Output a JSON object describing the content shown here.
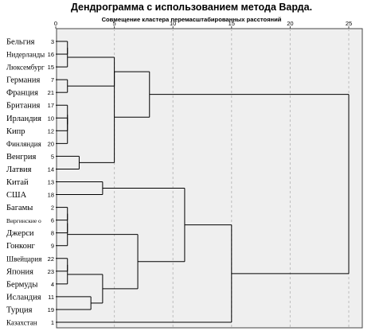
{
  "chart_data": {
    "type": "dendrogram",
    "title": "Дендрограмма с использованием метода Варда.",
    "subtitle": "Совмещение кластера перемасштабированных расстояний",
    "xlim": [
      0,
      25
    ],
    "xticks": [
      0,
      5,
      10,
      15,
      20,
      25
    ],
    "grid": true,
    "leaves": [
      {
        "label": "Бельгия",
        "id": 3
      },
      {
        "label": "Нидерланды",
        "id": 16
      },
      {
        "label": "Люксембург",
        "id": 15
      },
      {
        "label": "Германия",
        "id": 7
      },
      {
        "label": "Франция",
        "id": 21
      },
      {
        "label": "Британия",
        "id": 17
      },
      {
        "label": "Ирландия",
        "id": 10
      },
      {
        "label": "Кипр",
        "id": 12
      },
      {
        "label": "Финляндия",
        "id": 20
      },
      {
        "label": "Венгрия",
        "id": 5
      },
      {
        "label": "Латвия",
        "id": 14
      },
      {
        "label": "Китай",
        "id": 13
      },
      {
        "label": "США",
        "id": 18
      },
      {
        "label": "Багамы",
        "id": 2
      },
      {
        "label": "Виргинские о",
        "id": 6
      },
      {
        "label": "Джерси",
        "id": 8
      },
      {
        "label": "Гонконг",
        "id": 9
      },
      {
        "label": "Швейцария",
        "id": 22
      },
      {
        "label": "Япония",
        "id": 23
      },
      {
        "label": "Бермуды",
        "id": 4
      },
      {
        "label": "Исландия",
        "id": 11
      },
      {
        "label": "Турция",
        "id": 19
      },
      {
        "label": "Казахстан",
        "id": 1
      }
    ],
    "merges": [
      {
        "a": 3,
        "b": 16,
        "height": 1
      },
      {
        "a": 10,
        "b": 12,
        "height": 1
      },
      {
        "a": 2,
        "b": 6,
        "height": 1
      },
      {
        "a": 22,
        "b": 23,
        "height": 1
      },
      {
        "a": 7,
        "b": 21,
        "height": 1
      },
      {
        "a": 17,
        "b": 10,
        "height": 1
      },
      {
        "a": 15,
        "b": 3,
        "height": 1
      },
      {
        "a": 8,
        "b": 2,
        "height": 1
      },
      {
        "a": 4,
        "b": 22,
        "height": 1
      },
      {
        "a": 20,
        "b": 17,
        "height": 1
      },
      {
        "a": 9,
        "b": 8,
        "height": 1
      },
      {
        "a": 5,
        "b": 14,
        "height": 2
      },
      {
        "a": 11,
        "b": 19,
        "height": 3
      },
      {
        "a": 4,
        "b": 11,
        "height": 4
      },
      {
        "a": 13,
        "b": 18,
        "height": 4
      },
      {
        "a": 15,
        "b": 7,
        "height": 5
      },
      {
        "a": 5,
        "b": 15,
        "height": 5
      },
      {
        "a": 4,
        "b": 9,
        "height": 7
      },
      {
        "a": 13,
        "b": 4,
        "height": 11
      },
      {
        "a": 15,
        "b": 5,
        "height": 8
      },
      {
        "a": 1,
        "b": 13,
        "height": 15
      },
      {
        "a": 1,
        "b": 15,
        "height": 25
      }
    ]
  }
}
